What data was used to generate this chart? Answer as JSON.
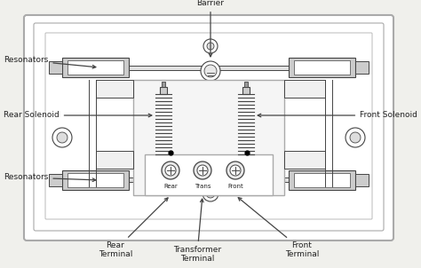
{
  "bg_color": "#f0f0ec",
  "border_color": "#999999",
  "component_color": "#cccccc",
  "line_color": "#444444",
  "text_color": "#222222",
  "labels": {
    "barrier": "Barrier",
    "resonators_top": "Resonators",
    "rear_solenoid": "Rear Solenoid",
    "front_solenoid": "Front Solenoid",
    "resonators_bot": "Resonators",
    "rear_terminal": "Rear\nTerminal",
    "transformer_terminal": "Transformer\nTerminal",
    "front_terminal": "Front\nTerminal"
  },
  "terminal_labels": [
    "Rear",
    "Trans",
    "Front"
  ],
  "figsize": [
    4.74,
    3.02
  ],
  "dpi": 100
}
